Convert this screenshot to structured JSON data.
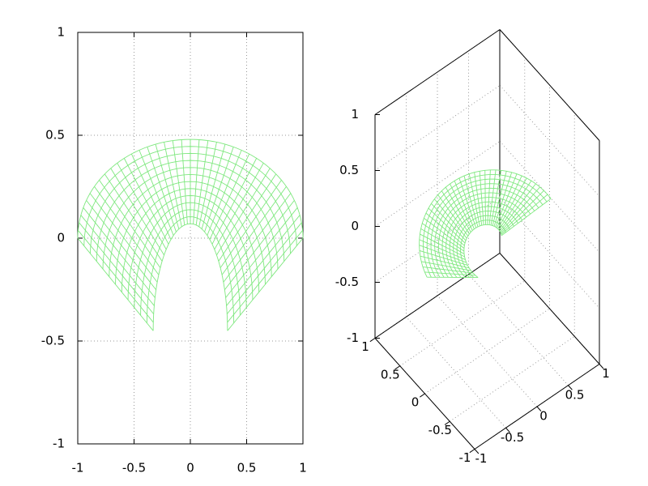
{
  "chart_data": [
    {
      "type": "mesh",
      "color": "#7fe87f",
      "xlim": [
        -1,
        1
      ],
      "ylim": [
        -1,
        1
      ],
      "xticks": [
        -1,
        -0.5,
        0,
        0.5,
        1
      ],
      "yticks": [
        -1,
        -0.5,
        0,
        0.5,
        1
      ],
      "grid": true
    },
    {
      "type": "surface3d",
      "color": "#7fe87f",
      "xlim": [
        -1,
        1
      ],
      "ylim": [
        -1,
        1
      ],
      "zlim": [
        -1,
        1
      ],
      "xticks": [
        -1,
        -0.5,
        0,
        0.5,
        1
      ],
      "yticks": [
        -1,
        -0.5,
        0,
        0.5,
        1
      ],
      "zticks": [
        -1,
        -0.5,
        0,
        0.5,
        1
      ],
      "grid": true
    }
  ]
}
